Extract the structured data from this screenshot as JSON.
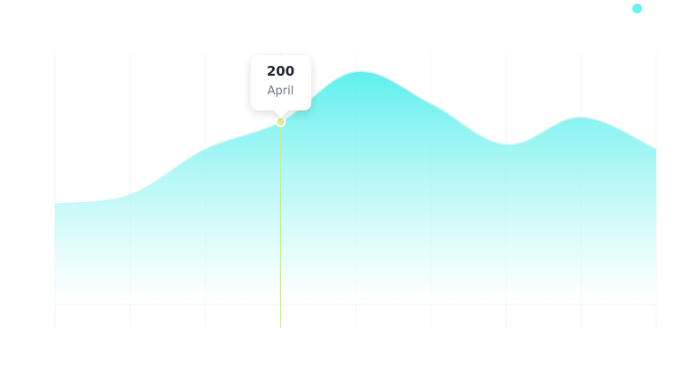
{
  "chart_data": {
    "type": "area",
    "title": "",
    "x": [
      "",
      "",
      "",
      "April",
      "",
      "",
      "",
      "",
      ""
    ],
    "series": [
      {
        "name": "",
        "values": [
          110,
          120,
          170,
          200,
          255,
          220,
          175,
          205,
          170
        ],
        "color": "#6cf1ef"
      }
    ],
    "ylim": [
      0,
      275
    ],
    "grid": true,
    "legend": "top-right",
    "tooltip": {
      "value": "200",
      "label": "April",
      "index": 3
    }
  }
}
